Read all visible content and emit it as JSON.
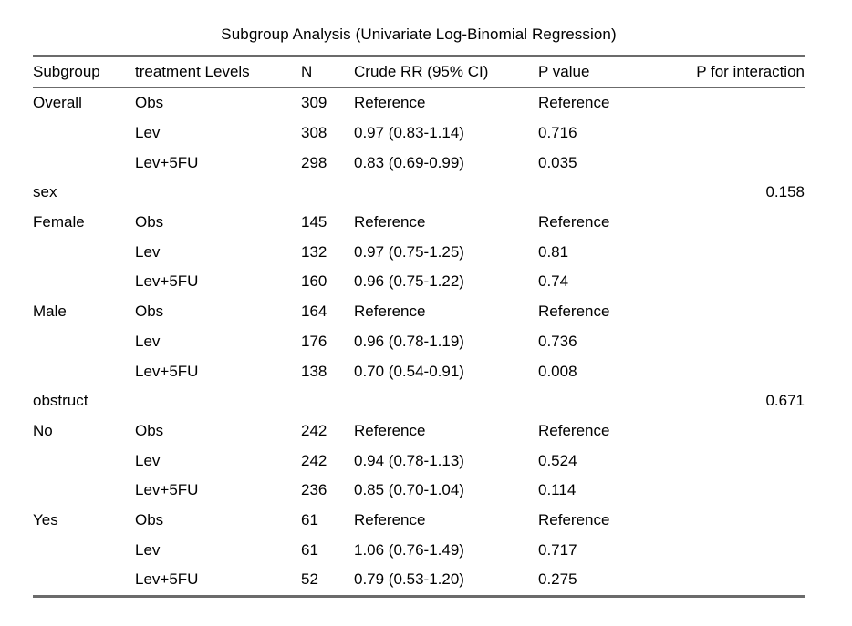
{
  "title": "Subgroup Analysis (Univariate Log-Binomial Regression)",
  "colors": {
    "background": "#ffffff",
    "text": "#000000",
    "rule": "#6b6b6b"
  },
  "table": {
    "columns": [
      "Subgroup",
      "treatment Levels",
      "N",
      "Crude RR (95% CI)",
      "P value",
      "P for interaction"
    ],
    "rows": [
      {
        "subgroup": "Overall",
        "treatment": "Obs",
        "n": "309",
        "crude_rr": "Reference",
        "p_value": "Reference",
        "p_interaction": ""
      },
      {
        "subgroup": "",
        "treatment": "Lev",
        "n": "308",
        "crude_rr": "0.97 (0.83-1.14)",
        "p_value": "0.716",
        "p_interaction": ""
      },
      {
        "subgroup": "",
        "treatment": "Lev+5FU",
        "n": "298",
        "crude_rr": "0.83 (0.69-0.99)",
        "p_value": "0.035",
        "p_interaction": ""
      },
      {
        "subgroup": "sex",
        "treatment": "",
        "n": "",
        "crude_rr": "",
        "p_value": "",
        "p_interaction": "0.158"
      },
      {
        "subgroup": "Female",
        "treatment": "Obs",
        "n": "145",
        "crude_rr": "Reference",
        "p_value": "Reference",
        "p_interaction": ""
      },
      {
        "subgroup": "",
        "treatment": "Lev",
        "n": "132",
        "crude_rr": "0.97 (0.75-1.25)",
        "p_value": "0.81",
        "p_interaction": ""
      },
      {
        "subgroup": "",
        "treatment": "Lev+5FU",
        "n": "160",
        "crude_rr": "0.96 (0.75-1.22)",
        "p_value": "0.74",
        "p_interaction": ""
      },
      {
        "subgroup": "Male",
        "treatment": "Obs",
        "n": "164",
        "crude_rr": "Reference",
        "p_value": "Reference",
        "p_interaction": ""
      },
      {
        "subgroup": "",
        "treatment": "Lev",
        "n": "176",
        "crude_rr": "0.96 (0.78-1.19)",
        "p_value": "0.736",
        "p_interaction": ""
      },
      {
        "subgroup": "",
        "treatment": "Lev+5FU",
        "n": "138",
        "crude_rr": "0.70 (0.54-0.91)",
        "p_value": "0.008",
        "p_interaction": ""
      },
      {
        "subgroup": "obstruct",
        "treatment": "",
        "n": "",
        "crude_rr": "",
        "p_value": "",
        "p_interaction": "0.671"
      },
      {
        "subgroup": "No",
        "treatment": "Obs",
        "n": "242",
        "crude_rr": "Reference",
        "p_value": "Reference",
        "p_interaction": ""
      },
      {
        "subgroup": "",
        "treatment": "Lev",
        "n": "242",
        "crude_rr": "0.94 (0.78-1.13)",
        "p_value": "0.524",
        "p_interaction": ""
      },
      {
        "subgroup": "",
        "treatment": "Lev+5FU",
        "n": "236",
        "crude_rr": "0.85 (0.70-1.04)",
        "p_value": "0.114",
        "p_interaction": ""
      },
      {
        "subgroup": "Yes",
        "treatment": "Obs",
        "n": "61",
        "crude_rr": "Reference",
        "p_value": "Reference",
        "p_interaction": ""
      },
      {
        "subgroup": "",
        "treatment": "Lev",
        "n": "61",
        "crude_rr": "1.06 (0.76-1.49)",
        "p_value": "0.717",
        "p_interaction": ""
      },
      {
        "subgroup": "",
        "treatment": "Lev+5FU",
        "n": "52",
        "crude_rr": "0.79 (0.53-1.20)",
        "p_value": "0.275",
        "p_interaction": ""
      }
    ]
  }
}
